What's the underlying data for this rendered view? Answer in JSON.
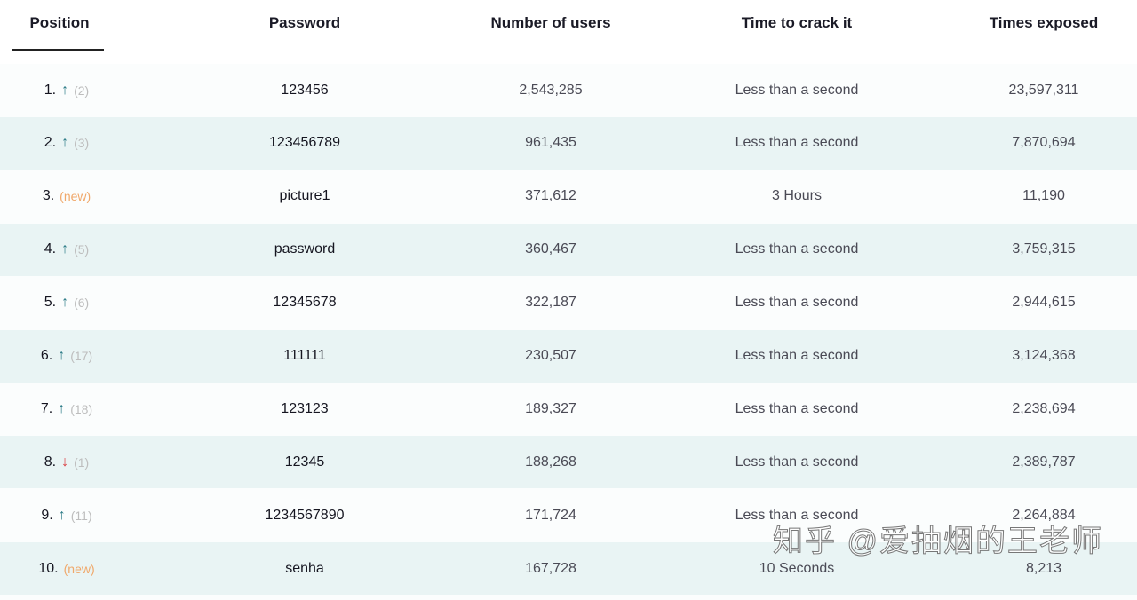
{
  "headers": [
    "Position",
    "Password",
    "Number of users",
    "Time to crack it",
    "Times exposed"
  ],
  "colors": {
    "up": "#2a7a86",
    "down": "#d8373b",
    "new": "#f0a86a",
    "row_alt": "#e9f4f4"
  },
  "rows": [
    {
      "pos": "1.",
      "trend": "up",
      "prev": "(2)",
      "password": "123456",
      "users": "2,543,285",
      "crack": "Less than a second",
      "exposed": "23,597,311"
    },
    {
      "pos": "2.",
      "trend": "up",
      "prev": "(3)",
      "password": "123456789",
      "users": "961,435",
      "crack": "Less than a second",
      "exposed": "7,870,694"
    },
    {
      "pos": "3.",
      "trend": "new",
      "prev": "(new)",
      "password": "picture1",
      "users": "371,612",
      "crack": "3 Hours",
      "exposed": "11,190"
    },
    {
      "pos": "4.",
      "trend": "up",
      "prev": "(5)",
      "password": "password",
      "users": "360,467",
      "crack": "Less than a second",
      "exposed": "3,759,315"
    },
    {
      "pos": "5.",
      "trend": "up",
      "prev": "(6)",
      "password": "12345678",
      "users": "322,187",
      "crack": "Less than a second",
      "exposed": "2,944,615"
    },
    {
      "pos": "6.",
      "trend": "up",
      "prev": "(17)",
      "password": "111111",
      "users": "230,507",
      "crack": "Less than a second",
      "exposed": "3,124,368"
    },
    {
      "pos": "7.",
      "trend": "up",
      "prev": "(18)",
      "password": "123123",
      "users": "189,327",
      "crack": "Less than a second",
      "exposed": "2,238,694"
    },
    {
      "pos": "8.",
      "trend": "down",
      "prev": "(1)",
      "password": "12345",
      "users": "188,268",
      "crack": "Less than a second",
      "exposed": "2,389,787"
    },
    {
      "pos": "9.",
      "trend": "up",
      "prev": "(11)",
      "password": "1234567890",
      "users": "171,724",
      "crack": "Less than a second",
      "exposed": "2,264,884"
    },
    {
      "pos": "10.",
      "trend": "new",
      "prev": "(new)",
      "password": "senha",
      "users": "167,728",
      "crack": "10 Seconds",
      "exposed": "8,213"
    }
  ],
  "icons": {
    "up": "arrow-up-icon",
    "down": "arrow-down-icon"
  },
  "watermark": "知乎 @爱抽烟的王老师"
}
